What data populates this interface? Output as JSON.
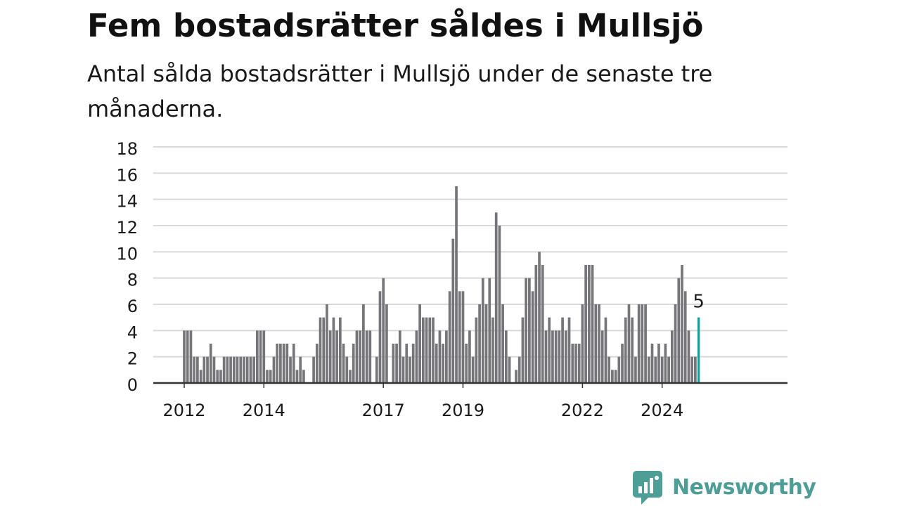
{
  "title": "Fem bostadsrätter såldes i Mullsjö",
  "subtitle": "Antal sålda bostadsrätter i Mullsjö under de senaste tre månaderna.",
  "brand": {
    "name": "Newsworthy",
    "color": "#4d9e97",
    "icon": "newsworthy-chart-bubble-icon"
  },
  "chart_data": {
    "type": "bar",
    "title": "",
    "xlabel": "",
    "ylabel": "",
    "ylim": [
      0,
      18
    ],
    "yticks": [
      0,
      2,
      4,
      6,
      8,
      10,
      12,
      14,
      16,
      18
    ],
    "grid": true,
    "start": "2012-01",
    "x_tick_labels": [
      "2012",
      "2014",
      "2017",
      "2019",
      "2022",
      "2024"
    ],
    "bar_color": "#76767a",
    "highlight_color": "#1a9e99",
    "highlight_label": "5",
    "values": [
      4,
      4,
      4,
      2,
      2,
      1,
      2,
      2,
      3,
      2,
      1,
      1,
      2,
      2,
      2,
      2,
      2,
      2,
      2,
      2,
      2,
      2,
      4,
      4,
      4,
      1,
      1,
      2,
      3,
      3,
      3,
      3,
      2,
      3,
      1,
      2,
      1,
      0,
      0,
      2,
      3,
      5,
      5,
      6,
      4,
      5,
      4,
      5,
      3,
      2,
      1,
      3,
      4,
      4,
      6,
      4,
      4,
      0,
      2,
      7,
      8,
      6,
      0,
      3,
      3,
      4,
      2,
      3,
      2,
      3,
      4,
      6,
      5,
      5,
      5,
      5,
      3,
      4,
      3,
      4,
      7,
      11,
      15,
      7,
      7,
      3,
      4,
      2,
      5,
      6,
      8,
      6,
      8,
      5,
      13,
      12,
      6,
      4,
      2,
      0,
      1,
      2,
      5,
      8,
      8,
      7,
      9,
      10,
      9,
      4,
      5,
      4,
      4,
      4,
      5,
      4,
      5,
      3,
      3,
      3,
      6,
      9,
      9,
      9,
      6,
      6,
      4,
      5,
      2,
      1,
      1,
      2,
      3,
      5,
      6,
      5,
      2,
      6,
      6,
      6,
      2,
      3,
      2,
      3,
      2,
      3,
      2,
      4,
      6,
      8,
      9,
      7,
      4,
      2,
      2,
      5
    ]
  }
}
